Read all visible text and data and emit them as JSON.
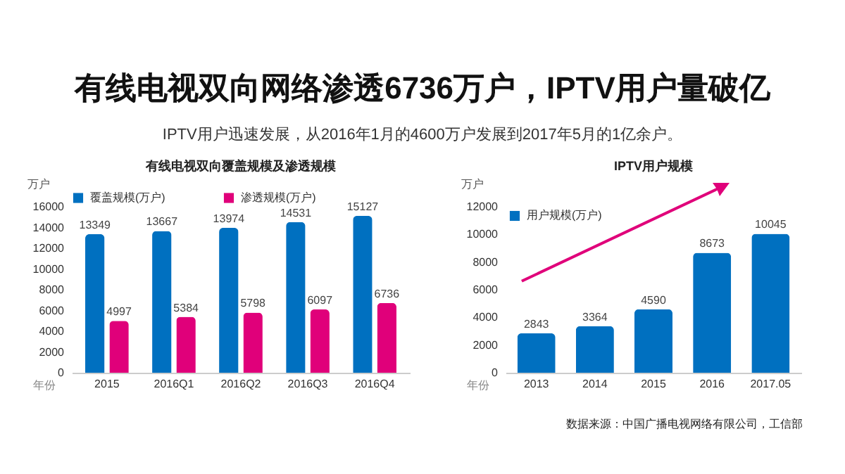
{
  "chart_data": [
    {
      "type": "other",
      "title": "有线电视双向网络渗透6736万户，IPTV用户量破亿",
      "subtitle": "IPTV用户迅速发展，从2016年1月的4600万户发展到2017年5月的1亿余户。"
    },
    {
      "type": "bar",
      "title": "有线电视双向覆盖规模及渗透规模",
      "xlabel": "年份",
      "ylabel": "万户",
      "categories": [
        "2015",
        "2016Q1",
        "2016Q2",
        "2016Q3",
        "2016Q4"
      ],
      "series": [
        {
          "name": "覆盖规模(万户)",
          "color": "#0070c0",
          "values": [
            13349,
            13667,
            13974,
            14531,
            15127
          ]
        },
        {
          "name": "渗透规模(万户)",
          "color": "#e0007a",
          "values": [
            4997,
            5384,
            5798,
            6097,
            6736
          ]
        }
      ],
      "ylim": [
        0,
        16000
      ],
      "yticks": [
        0,
        2000,
        4000,
        6000,
        8000,
        10000,
        12000,
        14000,
        16000
      ],
      "grid": false,
      "legend": "top",
      "data_labels": true
    },
    {
      "type": "bar",
      "title": "IPTV用户规模",
      "xlabel": "年份",
      "ylabel": "万户",
      "categories": [
        "2013",
        "2014",
        "2015",
        "2016",
        "2017.05"
      ],
      "series": [
        {
          "name": "用户规模(万户)",
          "color": "#0070c0",
          "values": [
            2843,
            3364,
            4590,
            8673,
            10045
          ]
        }
      ],
      "ylim": [
        0,
        12000
      ],
      "yticks": [
        0,
        2000,
        4000,
        6000,
        8000,
        10000,
        12000
      ],
      "grid": false,
      "legend": "top left",
      "data_labels": true,
      "annotations": [
        "数据来源：中国广播电视网络有限公司，工信部"
      ]
    }
  ]
}
